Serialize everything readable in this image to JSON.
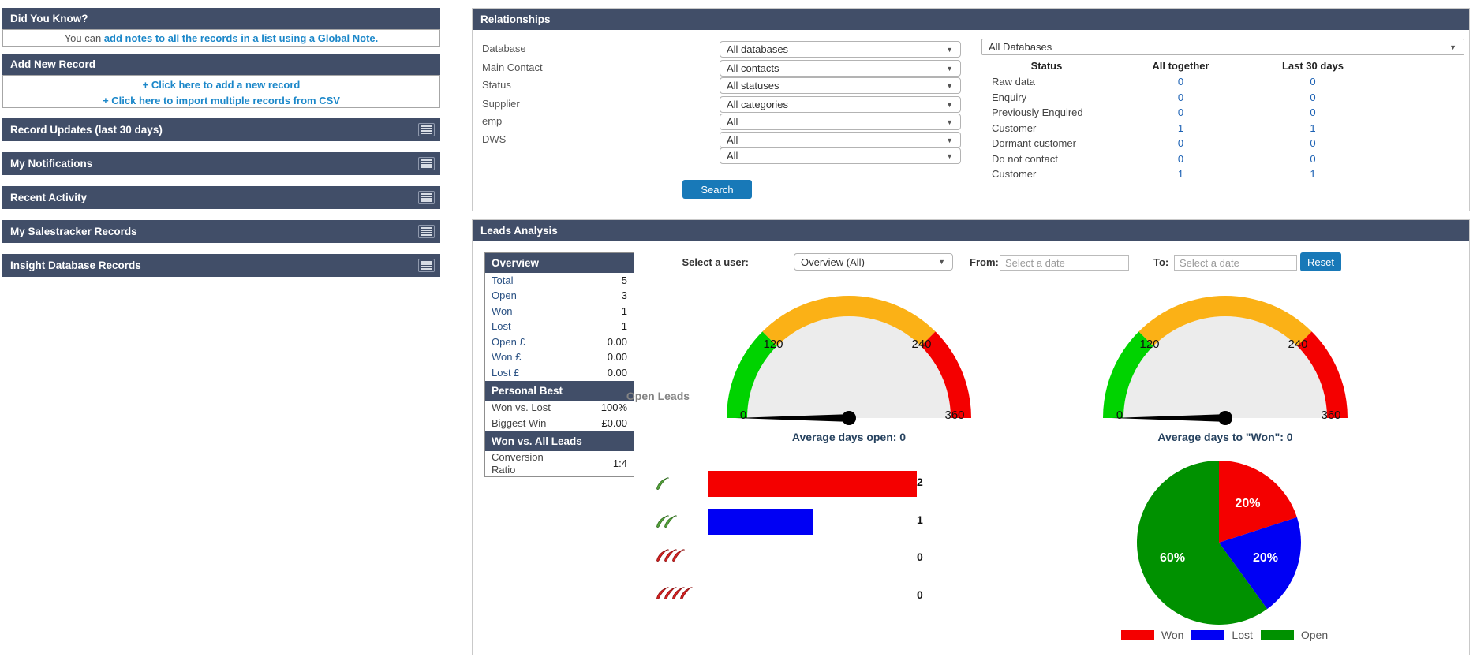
{
  "colors": {
    "header_bg": "#414e68",
    "link_blue": "#1b87c9",
    "button_blue": "#1879b8",
    "table_number_blue": "#1d62b4",
    "caption_navy": "#26425f"
  },
  "sidebar": {
    "did_you_know": {
      "title": "Did You Know?",
      "text_prefix": "You can ",
      "link_text": "add notes to all the records in a list using a Global Note",
      "text_suffix": "."
    },
    "add_new_record": {
      "title": "Add New Record",
      "links": [
        "+ Click here to add a new record",
        "+ Click here to import multiple records from CSV"
      ]
    },
    "collapsed_panels": [
      {
        "label": "Record Updates (last 30 days)"
      },
      {
        "label": "My Notifications"
      },
      {
        "label": "Recent Activity"
      },
      {
        "label": "My Salestracker Records"
      },
      {
        "label": "Insight Database Records"
      }
    ]
  },
  "relationships": {
    "title": "Relationships",
    "filters": [
      {
        "label": "Database",
        "value": "All databases"
      },
      {
        "label": "Main Contact",
        "value": "All contacts"
      },
      {
        "label": "Status",
        "value": "All statuses"
      },
      {
        "label": "Supplier",
        "value": "All categories"
      },
      {
        "label": "emp",
        "value": "All"
      },
      {
        "label": "DWS",
        "value": "All"
      },
      {
        "label": "",
        "value": "All"
      }
    ],
    "search_label": "Search",
    "database_selector_value": "All Databases",
    "status_table": {
      "columns": [
        "Status",
        "All together",
        "Last 30 days"
      ],
      "rows": [
        [
          "Raw data",
          "0",
          "0"
        ],
        [
          "Enquiry",
          "0",
          "0"
        ],
        [
          "Previously Enquired",
          "0",
          "0"
        ],
        [
          "Customer",
          "1",
          "1"
        ],
        [
          "Dormant customer",
          "0",
          "0"
        ],
        [
          "Do not contact",
          "0",
          "0"
        ],
        [
          "Customer",
          "1",
          "1"
        ]
      ]
    }
  },
  "leads": {
    "title": "Leads Analysis",
    "overview": {
      "title": "Overview",
      "rows": [
        [
          "Total",
          "5"
        ],
        [
          "Open",
          "3"
        ],
        [
          "Won",
          "1"
        ],
        [
          "Lost",
          "1"
        ],
        [
          "Open £",
          "0.00"
        ],
        [
          "Won £",
          "0.00"
        ],
        [
          "Lost £",
          "0.00"
        ]
      ]
    },
    "personal_best": {
      "title": "Personal Best",
      "rows": [
        [
          "Won vs. Lost",
          "100%"
        ],
        [
          "Biggest Win",
          "£0.00"
        ]
      ]
    },
    "won_vs_all": {
      "title": "Won vs. All Leads",
      "rows": [
        [
          "Conversion Ratio",
          "1:4"
        ]
      ]
    },
    "user_filter": {
      "label": "Select a user:",
      "value": "Overview (All)",
      "from_label": "From:",
      "from_placeholder": "Select a date",
      "to_label": "To:",
      "to_placeholder": "Select a date",
      "reset_label": "Reset"
    }
  },
  "chart_data": [
    {
      "type": "gauge",
      "title": "Average days open: 0",
      "value": 0,
      "min": 0,
      "max": 360,
      "ticks": [
        "0",
        "120",
        "240",
        "360"
      ],
      "zones": [
        {
          "from": 0,
          "to": 120,
          "color": "#00d300"
        },
        {
          "from": 120,
          "to": 240,
          "color": "#fbb116"
        },
        {
          "from": 240,
          "to": 360,
          "color": "#f40000"
        }
      ],
      "face_color": "#ececec",
      "needle_color": "#000000"
    },
    {
      "type": "gauge",
      "title": "Average days to \"Won\": 0",
      "value": 0,
      "min": 0,
      "max": 360,
      "ticks": [
        "0",
        "120",
        "240",
        "360"
      ],
      "zones": [
        {
          "from": 0,
          "to": 120,
          "color": "#00d300"
        },
        {
          "from": 120,
          "to": 240,
          "color": "#fbb116"
        },
        {
          "from": 240,
          "to": 360,
          "color": "#f40000"
        }
      ],
      "face_color": "#ececec",
      "needle_color": "#000000"
    },
    {
      "type": "bar",
      "title": "Open Leads",
      "orientation": "horizontal",
      "categories": [
        "1 chilli",
        "2 chillies",
        "3 chillies",
        "4 chillies"
      ],
      "icons": [
        {
          "count": 1,
          "color_name": "green",
          "fill": "#55a33b",
          "stroke": "#2f6b1e"
        },
        {
          "count": 2,
          "color_name": "green",
          "fill": "#55a33b",
          "stroke": "#2f6b1e"
        },
        {
          "count": 3,
          "color_name": "red",
          "fill": "#d42121",
          "stroke": "#8f1010"
        },
        {
          "count": 4,
          "color_name": "red",
          "fill": "#d42121",
          "stroke": "#8f1010"
        }
      ],
      "values": [
        2,
        1,
        0,
        0
      ],
      "bar_colors": [
        "#f40000",
        "#0000f4",
        "",
        ""
      ],
      "xlim": [
        0,
        2
      ]
    },
    {
      "type": "pie",
      "slices": [
        {
          "label": "Won",
          "value": 20,
          "pct_label": "20%",
          "color": "#f40000"
        },
        {
          "label": "Lost",
          "value": 20,
          "pct_label": "20%",
          "color": "#0000f4"
        },
        {
          "label": "Open",
          "value": 60,
          "pct_label": "60%",
          "color": "#009100"
        }
      ],
      "legend_position": "bottom"
    }
  ]
}
